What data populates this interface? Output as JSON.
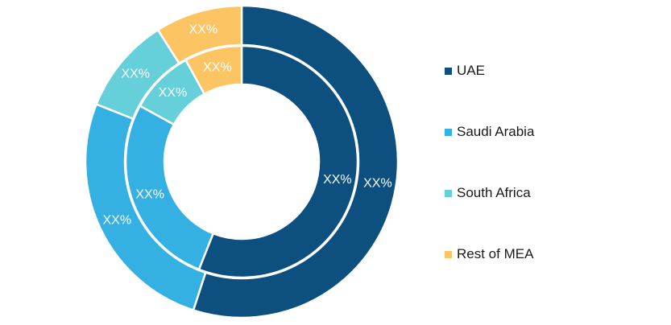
{
  "chart_data": {
    "type": "pie",
    "variant": "nested-donut",
    "categories": [
      "UAE",
      "Saudi Arabia",
      "South Africa",
      "Rest of MEA"
    ],
    "colors": [
      "#0d4f7f",
      "#35b0e3",
      "#66d0da",
      "#fcc462"
    ],
    "series": [
      {
        "ring": "inner",
        "values": [
          56,
          27,
          9,
          8
        ],
        "labels": [
          "XX%",
          "XX%",
          "XX%",
          "XX%"
        ]
      },
      {
        "ring": "outer",
        "values": [
          55,
          26,
          10,
          9
        ],
        "labels": [
          "XX%",
          "XX%",
          "XX%",
          "XX%"
        ]
      }
    ],
    "legend_position": "right"
  }
}
